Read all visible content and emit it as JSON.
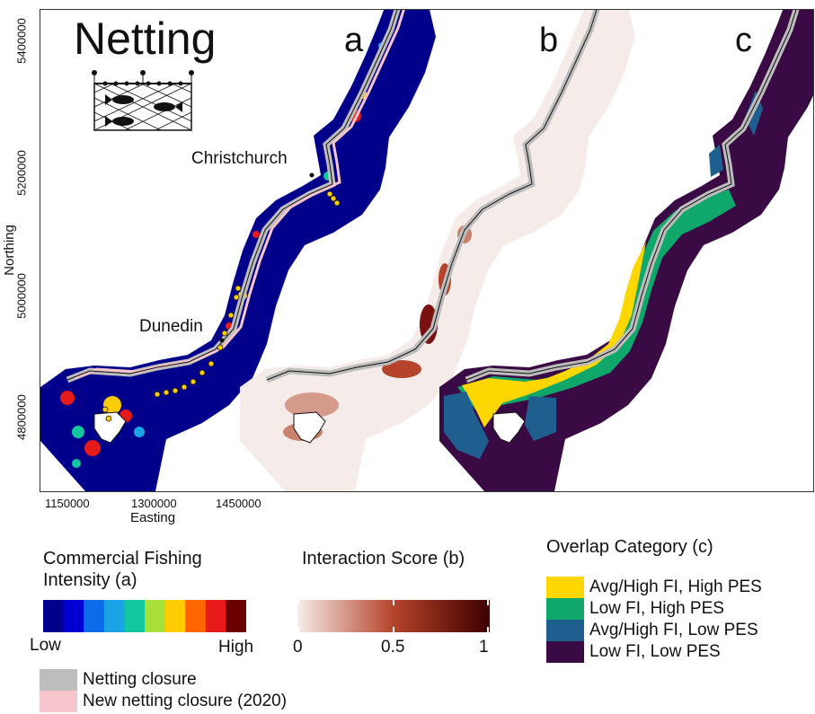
{
  "figure": {
    "title": "Netting",
    "panels": [
      "a",
      "b",
      "c"
    ],
    "cities": [
      "Christchurch",
      "Dunedin"
    ],
    "y_axis": {
      "label": "Northing",
      "ticks": [
        "5400000",
        "5200000",
        "5000000",
        "4800000"
      ]
    },
    "x_axis": {
      "label": "Easting",
      "ticks": [
        "1150000",
        "1300000",
        "1450000"
      ]
    }
  },
  "legend_fishing": {
    "title_line1": "Commercial Fishing",
    "title_line2": "Intensity (a)",
    "low": "Low",
    "high": "High",
    "colors": [
      "#00008b",
      "#0000d5",
      "#0a6ce8",
      "#1aa4e6",
      "#12c7a0",
      "#a5e03b",
      "#ffcc00",
      "#ff6600",
      "#e61a1a",
      "#6b0000"
    ]
  },
  "legend_interaction": {
    "title": "Interaction Score (b)",
    "ticks": [
      "0",
      "0.5",
      "1"
    ],
    "color_low": "#f5ece9",
    "color_mid": "#b5442a",
    "color_high": "#3d0000"
  },
  "legend_overlap": {
    "title": "Overlap Category (c)",
    "items": [
      {
        "label": "Avg/High FI, High PES",
        "color": "#ffd700"
      },
      {
        "label": "Low FI, High PES",
        "color": "#10a86a"
      },
      {
        "label": "Avg/High FI, Low PES",
        "color": "#1f5f8f"
      },
      {
        "label": "Low FI, Low PES",
        "color": "#3a0a45"
      }
    ]
  },
  "legend_closures": {
    "items": [
      {
        "label": "Netting closure",
        "color": "#bdbdbd"
      },
      {
        "label": "New netting closure (2020)",
        "color": "#f7c5cc"
      }
    ]
  }
}
